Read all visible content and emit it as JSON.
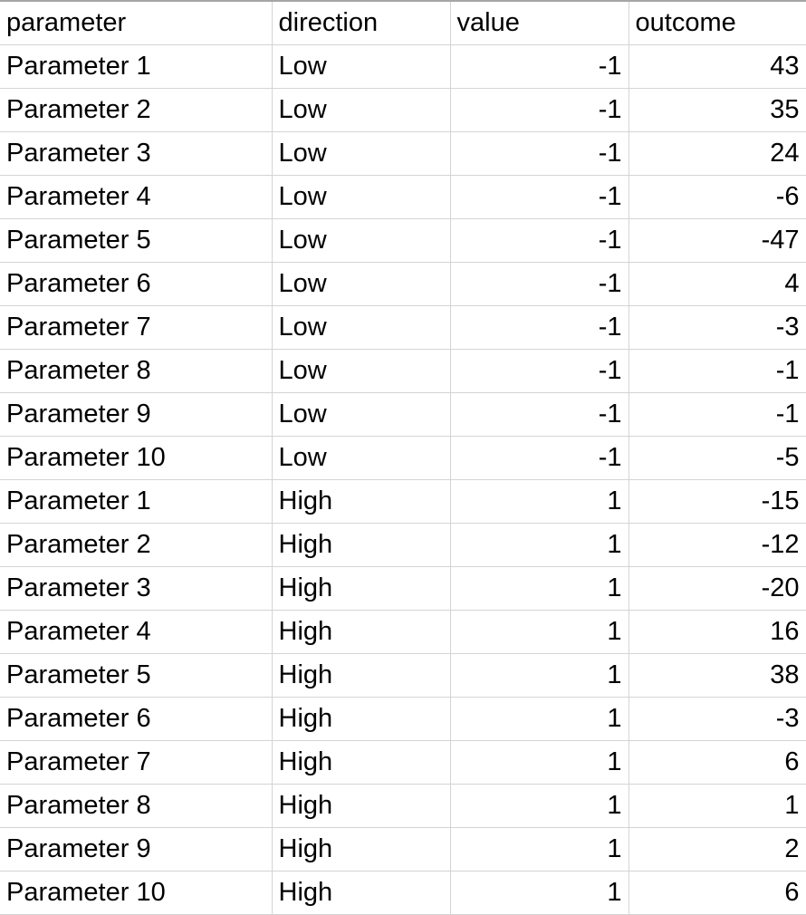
{
  "sheet": {
    "headers": [
      "parameter",
      "direction",
      "value",
      "outcome"
    ],
    "rows": [
      [
        "Parameter 1",
        "Low",
        "-1",
        "43"
      ],
      [
        "Parameter 2",
        "Low",
        "-1",
        "35"
      ],
      [
        "Parameter 3",
        "Low",
        "-1",
        "24"
      ],
      [
        "Parameter 4",
        "Low",
        "-1",
        "-6"
      ],
      [
        "Parameter 5",
        "Low",
        "-1",
        "-47"
      ],
      [
        "Parameter 6",
        "Low",
        "-1",
        "4"
      ],
      [
        "Parameter 7",
        "Low",
        "-1",
        "-3"
      ],
      [
        "Parameter 8",
        "Low",
        "-1",
        "-1"
      ],
      [
        "Parameter 9",
        "Low",
        "-1",
        "-1"
      ],
      [
        "Parameter 10",
        "Low",
        "-1",
        "-5"
      ],
      [
        "Parameter 1",
        "High",
        "1",
        "-15"
      ],
      [
        "Parameter 2",
        "High",
        "1",
        "-12"
      ],
      [
        "Parameter 3",
        "High",
        "1",
        "-20"
      ],
      [
        "Parameter 4",
        "High",
        "1",
        "16"
      ],
      [
        "Parameter 5",
        "High",
        "1",
        "38"
      ],
      [
        "Parameter 6",
        "High",
        "1",
        "-3"
      ],
      [
        "Parameter 7",
        "High",
        "1",
        "6"
      ],
      [
        "Parameter 8",
        "High",
        "1",
        "1"
      ],
      [
        "Parameter 9",
        "High",
        "1",
        "2"
      ],
      [
        "Parameter 10",
        "High",
        "1",
        "6"
      ]
    ]
  }
}
